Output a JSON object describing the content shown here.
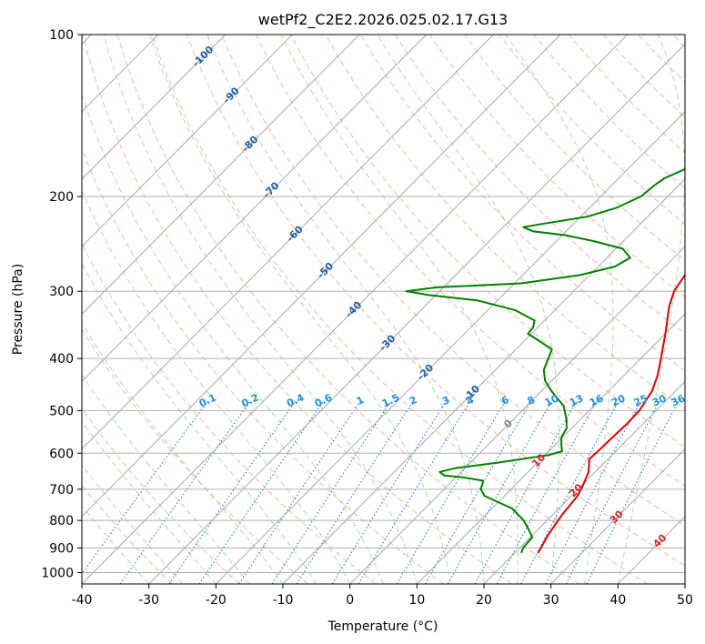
{
  "chart_data": {
    "type": "line",
    "title": "wetPf2_C2E2.2026.025.02.17.G13",
    "xlabel": "Temperature (°C)",
    "ylabel": "Pressure (hPa)",
    "xlim": [
      -40,
      50
    ],
    "ylim": [
      1050,
      100
    ],
    "xticks": [
      -40,
      -30,
      -20,
      -10,
      0,
      10,
      20,
      30,
      40,
      50
    ],
    "yticks": [
      100,
      200,
      300,
      400,
      500,
      600,
      700,
      800,
      900,
      1000
    ],
    "isotherm_labels": [
      {
        "text": "-100",
        "T": -100
      },
      {
        "text": "-90",
        "T": -90
      },
      {
        "text": "-80",
        "T": -80
      },
      {
        "text": "-70",
        "T": -70
      },
      {
        "text": "-60",
        "T": -60
      },
      {
        "text": "-50",
        "T": -50
      },
      {
        "text": "-40",
        "T": -40
      },
      {
        "text": "-30",
        "T": -30
      },
      {
        "text": "-20",
        "T": -20
      },
      {
        "text": "-10",
        "T": -10
      },
      {
        "text": "0",
        "T": 0
      },
      {
        "text": "10",
        "T": 10
      },
      {
        "text": "20",
        "T": 20
      },
      {
        "text": "30",
        "T": 30
      },
      {
        "text": "40",
        "T": 40
      }
    ],
    "mixing_ratio_labels": [
      "0.1",
      "0.2",
      "0.4",
      "0.6",
      "1",
      "1.5",
      "2",
      "3",
      "4",
      "6",
      "8",
      "10",
      "13",
      "16",
      "20",
      "25",
      "30",
      "36"
    ],
    "series": [
      {
        "name": "Temperature",
        "color": "#e00000",
        "points": [
          {
            "p": 920,
            "t": 23.5
          },
          {
            "p": 850,
            "t": 22.3
          },
          {
            "p": 780,
            "t": 21.4
          },
          {
            "p": 720,
            "t": 20.9
          },
          {
            "p": 690,
            "t": 20.2
          },
          {
            "p": 650,
            "t": 19.0
          },
          {
            "p": 615,
            "t": 17.2
          },
          {
            "p": 600,
            "t": 17.3
          },
          {
            "p": 570,
            "t": 17.4
          },
          {
            "p": 530,
            "t": 17.6
          },
          {
            "p": 500,
            "t": 17.5
          },
          {
            "p": 460,
            "t": 16.5
          },
          {
            "p": 430,
            "t": 15.0
          },
          {
            "p": 400,
            "t": 13.0
          },
          {
            "p": 360,
            "t": 10.0
          },
          {
            "p": 320,
            "t": 6.5
          },
          {
            "p": 300,
            "t": 5.0
          },
          {
            "p": 280,
            "t": 4.2
          },
          {
            "p": 260,
            "t": 4.0
          },
          {
            "p": 240,
            "t": 3.5
          },
          {
            "p": 220,
            "t": 2.3
          },
          {
            "p": 200,
            "t": 1.9
          },
          {
            "p": 180,
            "t": 1.0
          },
          {
            "p": 165,
            "t": 0.5
          },
          {
            "p": 155,
            "t": 0.8
          },
          {
            "p": 148,
            "t": 1.8
          },
          {
            "p": 140,
            "t": 4.3
          },
          {
            "p": 132,
            "t": 8.0
          },
          {
            "p": 125,
            "t": 10.0
          },
          {
            "p": 118,
            "t": 10.8
          },
          {
            "p": 110,
            "t": 11.8
          },
          {
            "p": 100,
            "t": 13.2
          }
        ]
      },
      {
        "name": "Dewpoint",
        "color": "#008000",
        "points": [
          {
            "p": 920,
            "t": 21.0
          },
          {
            "p": 900,
            "t": 20.5
          },
          {
            "p": 860,
            "t": 20.3
          },
          {
            "p": 830,
            "t": 18.5
          },
          {
            "p": 800,
            "t": 16.5
          },
          {
            "p": 760,
            "t": 13.0
          },
          {
            "p": 720,
            "t": 7.0
          },
          {
            "p": 700,
            "t": 5.5
          },
          {
            "p": 675,
            "t": 4.6
          },
          {
            "p": 665,
            "t": 1.0
          },
          {
            "p": 660,
            "t": -2.0
          },
          {
            "p": 650,
            "t": -3.2
          },
          {
            "p": 640,
            "t": -1.5
          },
          {
            "p": 625,
            "t": 4.0
          },
          {
            "p": 605,
            "t": 10.5
          },
          {
            "p": 595,
            "t": 12.0
          },
          {
            "p": 580,
            "t": 11.0
          },
          {
            "p": 560,
            "t": 9.8
          },
          {
            "p": 540,
            "t": 9.3
          },
          {
            "p": 520,
            "t": 8.0
          },
          {
            "p": 490,
            "t": 5.5
          },
          {
            "p": 460,
            "t": 1.5
          },
          {
            "p": 440,
            "t": -1.0
          },
          {
            "p": 420,
            "t": -2.8
          },
          {
            "p": 400,
            "t": -3.8
          },
          {
            "p": 385,
            "t": -4.6
          },
          {
            "p": 370,
            "t": -8.0
          },
          {
            "p": 360,
            "t": -10.5
          },
          {
            "p": 350,
            "t": -10.7
          },
          {
            "p": 340,
            "t": -11.5
          },
          {
            "p": 325,
            "t": -16.0
          },
          {
            "p": 312,
            "t": -23.0
          },
          {
            "p": 305,
            "t": -31.0
          },
          {
            "p": 300,
            "t": -35.0
          },
          {
            "p": 295,
            "t": -31.0
          },
          {
            "p": 290,
            "t": -19.0
          },
          {
            "p": 280,
            "t": -11.5
          },
          {
            "p": 270,
            "t": -7.5
          },
          {
            "p": 260,
            "t": -6.5
          },
          {
            "p": 250,
            "t": -9.0
          },
          {
            "p": 242,
            "t": -14.5
          },
          {
            "p": 236,
            "t": -19.5
          },
          {
            "p": 232,
            "t": -25.0
          },
          {
            "p": 228,
            "t": -27.0
          },
          {
            "p": 224,
            "t": -24.0
          },
          {
            "p": 218,
            "t": -19.0
          },
          {
            "p": 210,
            "t": -16.0
          },
          {
            "p": 200,
            "t": -14.0
          },
          {
            "p": 190,
            "t": -13.6
          },
          {
            "p": 185,
            "t": -13.2
          },
          {
            "p": 170,
            "t": -9.5
          },
          {
            "p": 160,
            "t": -6.5
          },
          {
            "p": 148,
            "t": -3.8
          },
          {
            "p": 140,
            "t": -3.5
          },
          {
            "p": 130,
            "t": -5.8
          },
          {
            "p": 124,
            "t": -9.3
          },
          {
            "p": 120,
            "t": -11.5
          },
          {
            "p": 117,
            "t": -11.2
          },
          {
            "p": 110,
            "t": -5.5
          },
          {
            "p": 104,
            "t": -1.5
          },
          {
            "p": 100,
            "t": 0.0
          }
        ]
      }
    ]
  }
}
